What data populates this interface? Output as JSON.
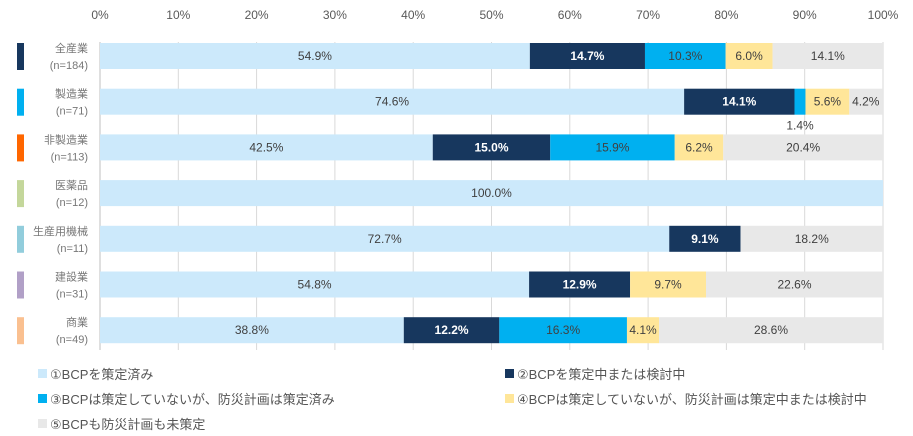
{
  "chart_data": {
    "type": "bar",
    "orientation": "horizontal-stacked-100",
    "xlim": [
      0,
      100
    ],
    "ticks": [
      "0%",
      "10%",
      "20%",
      "30%",
      "40%",
      "50%",
      "60%",
      "70%",
      "80%",
      "90%",
      "100%"
    ],
    "grid": true,
    "categories": [
      {
        "name": "全産業",
        "n": "(n=184)",
        "color": "#17375e"
      },
      {
        "name": "製造業",
        "n": "(n=71)",
        "color": "#00b0f0"
      },
      {
        "name": "非製造業",
        "n": "(n=113)",
        "color": "#ff6600"
      },
      {
        "name": "医薬品",
        "n": "(n=12)",
        "color": "#c4d79b"
      },
      {
        "name": "生産用機械",
        "n": "(n=11)",
        "color": "#92cddc"
      },
      {
        "name": "建設業",
        "n": "(n=31)",
        "color": "#b1a0c7"
      },
      {
        "name": "商業",
        "n": "(n=49)",
        "color": "#fac090"
      }
    ],
    "series": [
      {
        "name": "①BCPを策定済み",
        "color": "#cce9fb",
        "text": "#404040",
        "values": [
          54.9,
          74.6,
          42.5,
          100.0,
          72.7,
          54.8,
          38.8
        ]
      },
      {
        "name": "②BCPを策定中または検討中",
        "color": "#17375e",
        "text": "#ffffff",
        "values": [
          14.7,
          14.1,
          15.0,
          0,
          9.1,
          12.9,
          12.2
        ]
      },
      {
        "name": "③BCPは策定していないが、防災計画は策定済み",
        "color": "#00b0f0",
        "text": "#404040",
        "values": [
          10.3,
          1.4,
          15.9,
          0,
          0,
          0,
          16.3
        ]
      },
      {
        "name": "④BCPは策定していないが、防災計画は策定中または検討中",
        "color": "#ffe699",
        "text": "#404040",
        "values": [
          6.0,
          5.6,
          6.2,
          0,
          0,
          9.7,
          4.1
        ]
      },
      {
        "name": "⑤BCPも防災計画も未策定",
        "color": "#e8e8e8",
        "text": "#404040",
        "values": [
          14.1,
          4.2,
          20.4,
          0,
          18.2,
          22.6,
          28.6
        ]
      }
    ]
  }
}
